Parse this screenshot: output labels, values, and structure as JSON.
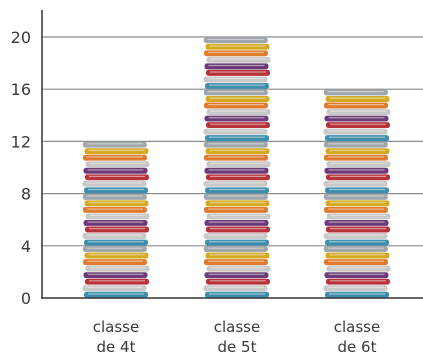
{
  "chart_data": {
    "type": "bar",
    "style": "pictogram-stacked-books",
    "categories": [
      [
        "classe",
        "de 4t"
      ],
      [
        "classe",
        "de 5t"
      ],
      [
        "classe",
        "de 6t"
      ]
    ],
    "values": [
      12,
      20,
      16
    ],
    "ylim": [
      0,
      22
    ],
    "yticks": [
      0,
      4,
      8,
      12,
      16,
      20
    ],
    "grid": true,
    "title": "",
    "xlabel": "",
    "ylabel": "",
    "colors": {
      "gridline": "#8c8c8c",
      "axis": "#333333",
      "book_spines": [
        "#3d8fb0",
        "#c9c9c9",
        "#b8323c",
        "#6b3a78",
        "#c8c8c8",
        "#e07a2e",
        "#d4aa22",
        "#9fa7ad"
      ]
    }
  }
}
